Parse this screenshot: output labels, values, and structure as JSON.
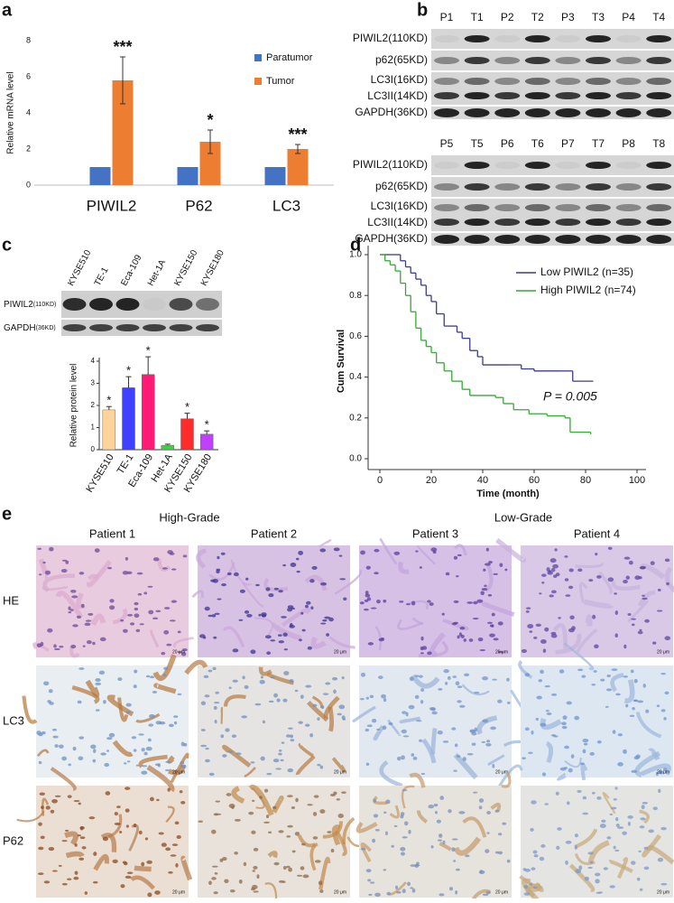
{
  "panel_labels": [
    "a",
    "b",
    "c",
    "d",
    "e"
  ],
  "chart_data": [
    {
      "type": "bar",
      "ylabel": "Relative mRNA level",
      "categories": [
        "PIWIL2",
        "P62",
        "LC3"
      ],
      "series": [
        {
          "name": "Paratumor",
          "color": "#4472c4",
          "values": [
            1,
            1,
            1
          ]
        },
        {
          "name": "Tumor",
          "color": "#ed7d31",
          "values": [
            5.8,
            2.4,
            2.0
          ],
          "errors": [
            1.3,
            0.65,
            0.25
          ],
          "annotations": [
            "***",
            "*",
            "***"
          ]
        }
      ],
      "ylim": [
        0,
        8
      ],
      "yticks": [
        0,
        2,
        4,
        6,
        8
      ]
    },
    {
      "type": "bar",
      "ylabel": "Relative protein level",
      "categories": [
        "KYSE510",
        "TE-1",
        "Eca-109",
        "Het-1A",
        "KYSE150",
        "KYSE180"
      ],
      "values": [
        1.8,
        2.8,
        3.4,
        0.2,
        1.4,
        0.7
      ],
      "errors": [
        0.15,
        0.5,
        0.8,
        0.05,
        0.25,
        0.15
      ],
      "colors": [
        "#ffd39b",
        "#4040ff",
        "#ff1a75",
        "#40d040",
        "#ff2a2a",
        "#c040ff"
      ],
      "annotations": [
        "*",
        "*",
        "*",
        null,
        "*",
        "*"
      ],
      "ylim": [
        0,
        4
      ],
      "yticks": [
        0,
        1,
        2,
        3,
        4
      ]
    },
    {
      "type": "line",
      "step": true,
      "xlabel": "Time (month)",
      "ylabel": "Cum Survival",
      "series": [
        {
          "name": "Low PIWIL2 (n=35)",
          "color": "#3b3b8f",
          "x": [
            0,
            5,
            8,
            10,
            12,
            14,
            16,
            18,
            20,
            22,
            25,
            30,
            32,
            35,
            38,
            40,
            50,
            55,
            60,
            70,
            75,
            83
          ],
          "values": [
            1,
            1,
            0.97,
            0.94,
            0.91,
            0.88,
            0.85,
            0.8,
            0.77,
            0.71,
            0.65,
            0.62,
            0.59,
            0.53,
            0.5,
            0.46,
            0.46,
            0.44,
            0.43,
            0.43,
            0.38,
            0.38
          ]
        },
        {
          "name": "High PIWIL2 (n=74)",
          "color": "#33aa33",
          "x": [
            0,
            2,
            4,
            6,
            8,
            10,
            12,
            14,
            16,
            18,
            20,
            22,
            25,
            28,
            32,
            35,
            45,
            48,
            52,
            58,
            65,
            72,
            74,
            82
          ],
          "values": [
            1,
            0.97,
            0.95,
            0.92,
            0.86,
            0.8,
            0.72,
            0.64,
            0.58,
            0.55,
            0.52,
            0.47,
            0.43,
            0.38,
            0.34,
            0.31,
            0.3,
            0.27,
            0.24,
            0.22,
            0.21,
            0.2,
            0.13,
            0.12
          ]
        }
      ],
      "xlim": [
        0,
        100
      ],
      "xticks": [
        0,
        20,
        40,
        60,
        80,
        100
      ],
      "ylim": [
        0,
        1
      ],
      "yticks": [
        {
          "value": 0,
          "label": "0.0"
        },
        0.2,
        0.4,
        0.6,
        0.8,
        {
          "value": 1,
          "label": "1.0"
        }
      ],
      "annotation": "P = 0.005"
    }
  ],
  "western_blot_b": {
    "blocks": [
      {
        "lanes": [
          "P1",
          "T1",
          "P2",
          "T2",
          "P3",
          "T3",
          "P4",
          "T4"
        ],
        "rows": [
          "PIWIL2(110KD)",
          "p62(65KD)",
          "LC3I(16KD)",
          "LC3II(14KD)",
          "GAPDH(36KD)"
        ]
      },
      {
        "lanes": [
          "P5",
          "T5",
          "P6",
          "T6",
          "P7",
          "T7",
          "P8",
          "T8"
        ],
        "rows": [
          "PIWIL2(110KD)",
          "p62(65KD)",
          "LC3I(16KD)",
          "LC3II(14KD)",
          "GAPDH(36KD)"
        ]
      }
    ]
  },
  "western_blot_c": {
    "lanes": [
      "KYSE510",
      "TE-1",
      "Eca-109",
      "Het-1A",
      "KYSE150",
      "KYSE180"
    ],
    "rows": [
      {
        "protein": "PIWIL2",
        "size": "(110KD)"
      },
      {
        "protein": "GAPDH",
        "size": "(36KD)"
      }
    ]
  },
  "ihc_e": {
    "groups": [
      "High-Grade",
      "Low-Grade"
    ],
    "patients": [
      "Patient 1",
      "Patient 2",
      "Patient 3",
      "Patient 4"
    ],
    "stains": [
      "HE",
      "LC3",
      "P62"
    ],
    "scale_bar": "20 μm"
  }
}
